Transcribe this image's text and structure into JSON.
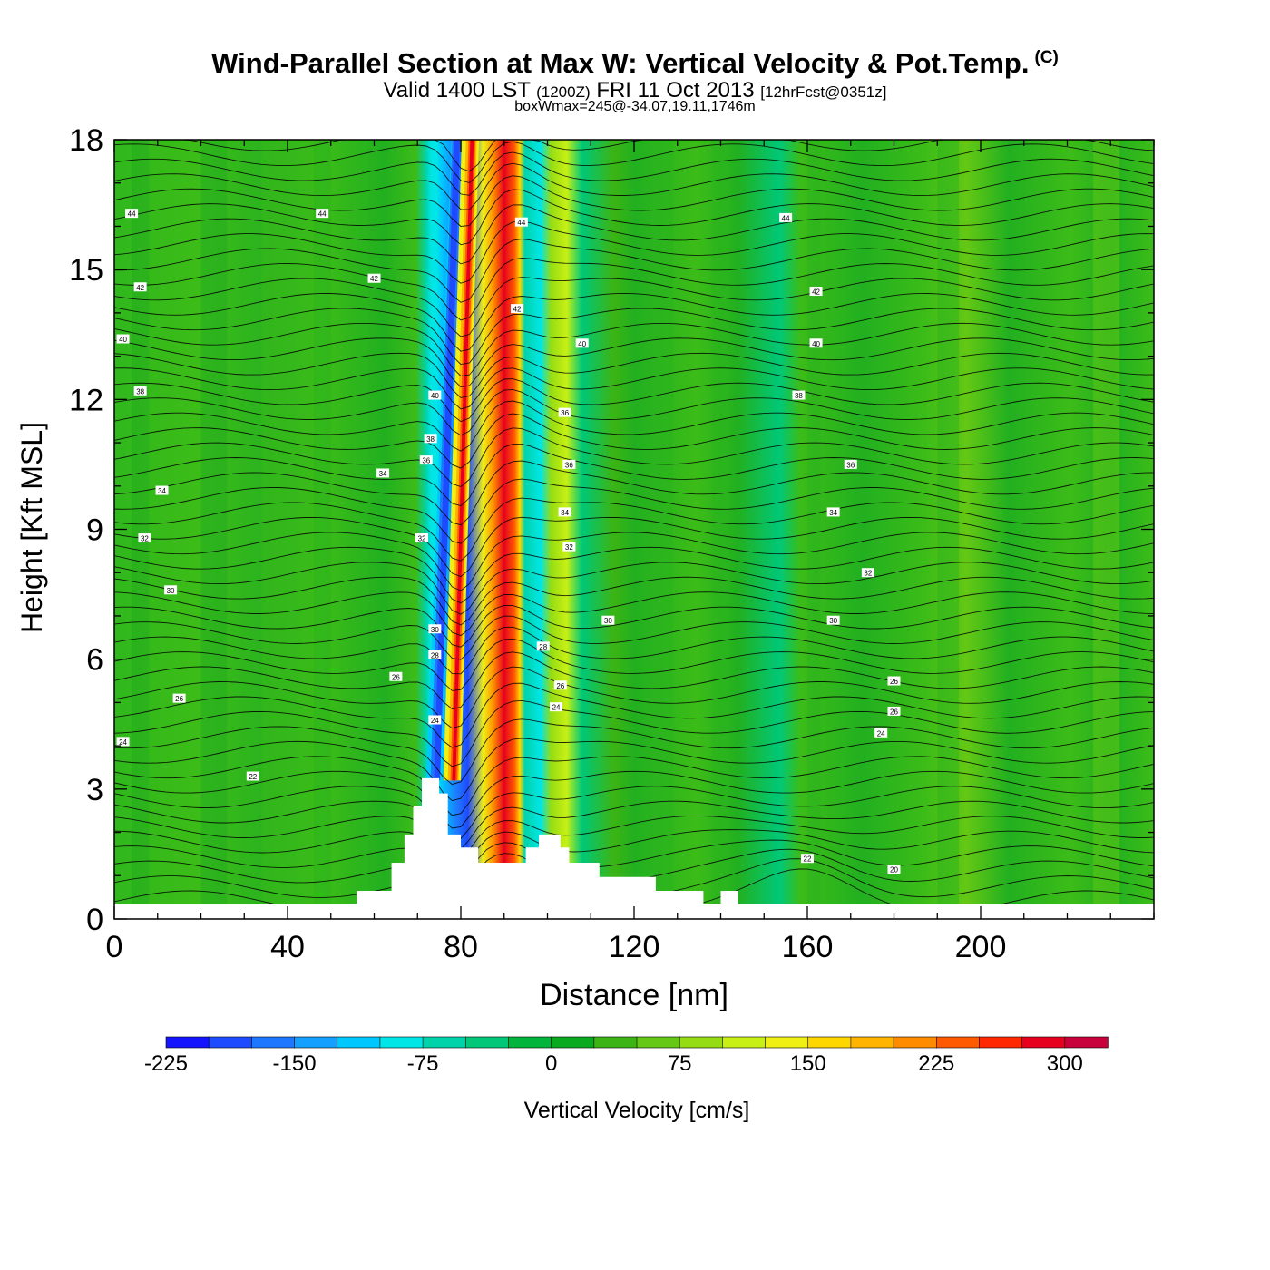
{
  "header": {
    "title": "Wind-Parallel Section at Max W: Vertical Velocity & Pot.Temp.",
    "copyright": "(C)",
    "valid_main": "Valid 1400 LST",
    "valid_z": "(1200Z)",
    "valid_date": "FRI 11 Oct 2013",
    "valid_fcst": "[12hrFcst@0351z]",
    "subtitle2": "boxWmax=245@-34.07,19.11,1746m"
  },
  "chart_data": {
    "type": "contour-section",
    "xlabel": "Distance [nm]",
    "ylabel": "Height [Kft MSL]",
    "xlim": [
      0,
      240
    ],
    "ylim": [
      0,
      18
    ],
    "xticks": [
      0,
      40,
      80,
      120,
      160,
      200
    ],
    "yticks": [
      0,
      3,
      6,
      9,
      12,
      15,
      18
    ],
    "max_w_cm_s": 245,
    "max_w_location": "-34.07,19.11",
    "max_w_height_m": 1746,
    "updraft_core_x_nm": [
      77,
      81
    ],
    "downdraft_core_x_nm": [
      73,
      76
    ],
    "theta_contour_labels_C": [
      20,
      22,
      24,
      26,
      28,
      30,
      32,
      34,
      36,
      38,
      40,
      42,
      44
    ],
    "terrain": [
      {
        "x": 0,
        "h": 0.35
      },
      {
        "x": 56,
        "h": 0.35
      },
      {
        "x": 56,
        "h": 0.65
      },
      {
        "x": 64,
        "h": 0.65
      },
      {
        "x": 64,
        "h": 1.3
      },
      {
        "x": 67,
        "h": 1.3
      },
      {
        "x": 67,
        "h": 1.95
      },
      {
        "x": 69,
        "h": 1.95
      },
      {
        "x": 69,
        "h": 2.6
      },
      {
        "x": 71,
        "h": 2.6
      },
      {
        "x": 71,
        "h": 3.25
      },
      {
        "x": 75,
        "h": 3.25
      },
      {
        "x": 75,
        "h": 2.9
      },
      {
        "x": 77,
        "h": 2.9
      },
      {
        "x": 77,
        "h": 1.95
      },
      {
        "x": 80,
        "h": 1.95
      },
      {
        "x": 80,
        "h": 1.65
      },
      {
        "x": 84,
        "h": 1.65
      },
      {
        "x": 84,
        "h": 1.3
      },
      {
        "x": 95,
        "h": 1.3
      },
      {
        "x": 95,
        "h": 1.65
      },
      {
        "x": 98,
        "h": 1.65
      },
      {
        "x": 98,
        "h": 1.95
      },
      {
        "x": 103,
        "h": 1.95
      },
      {
        "x": 103,
        "h": 1.65
      },
      {
        "x": 105,
        "h": 1.65
      },
      {
        "x": 105,
        "h": 1.3
      },
      {
        "x": 112,
        "h": 1.3
      },
      {
        "x": 112,
        "h": 0.97
      },
      {
        "x": 125,
        "h": 0.97
      },
      {
        "x": 125,
        "h": 0.65
      },
      {
        "x": 136,
        "h": 0.65
      },
      {
        "x": 136,
        "h": 0.35
      },
      {
        "x": 140,
        "h": 0.35
      },
      {
        "x": 140,
        "h": 0.65
      },
      {
        "x": 144,
        "h": 0.65
      },
      {
        "x": 144,
        "h": 0.35
      },
      {
        "x": 240,
        "h": 0.35
      }
    ],
    "colorbar": {
      "label": "Vertical Velocity [cm/s]",
      "tick_labels": [
        "-225",
        "-150",
        "-75",
        "0",
        "75",
        "150",
        "225",
        "300"
      ],
      "tick_values": [
        -225,
        -150,
        -75,
        0,
        75,
        150,
        225,
        300
      ],
      "min": -225,
      "step": 25,
      "colors": [
        "#1414ff",
        "#1e4bff",
        "#1e78ff",
        "#14a0ff",
        "#00c8ff",
        "#00e6e6",
        "#00d2aa",
        "#00c878",
        "#00b43c",
        "#0aaa1e",
        "#3cb414",
        "#64c814",
        "#96dc14",
        "#c8f014",
        "#f0f014",
        "#ffd700",
        "#ffb400",
        "#ff8c00",
        "#ff5a00",
        "#ff2800",
        "#e6001e",
        "#c8003c"
      ]
    }
  }
}
